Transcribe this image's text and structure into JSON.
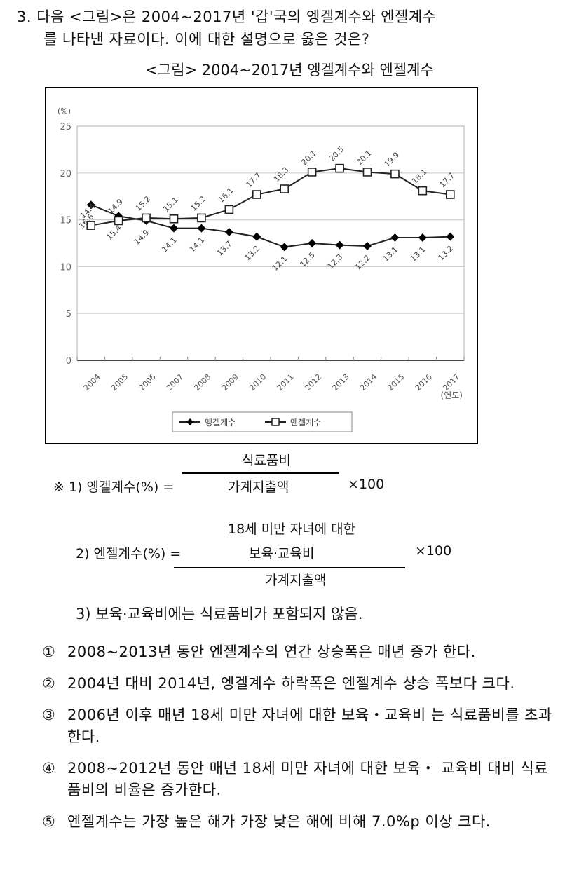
{
  "question": {
    "line1": "3. 다음 <그림>은 2004~2017년 '갑'국의 엥겔계수와 엔젤계수",
    "line2": "를 나타낸 자료이다. 이에 대한 설명으로 옳은 것은?"
  },
  "figure_title": "<그림> 2004~2017년 엥겔계수와 엔젤계수",
  "chart_data": {
    "type": "line",
    "title": "2004~2017년 엥겔계수와 엔젤계수",
    "xlabel": "(연도)",
    "ylabel": "(%)",
    "ylim": [
      0,
      25
    ],
    "yticks": [
      "0",
      "5",
      "10",
      "15",
      "20",
      "25"
    ],
    "grid": true,
    "legend_position": "bottom",
    "categories": [
      "2004",
      "2005",
      "2006",
      "2007",
      "2008",
      "2009",
      "2010",
      "2011",
      "2012",
      "2013",
      "2014",
      "2015",
      "2016",
      "2017"
    ],
    "series": [
      {
        "name": "엥겔계수",
        "marker": "filled-diamond",
        "values": [
          16.6,
          15.4,
          14.9,
          14.1,
          14.1,
          13.7,
          13.2,
          12.1,
          12.5,
          12.3,
          12.2,
          13.1,
          13.1,
          13.2
        ]
      },
      {
        "name": "엔젤계수",
        "marker": "open-square",
        "values": [
          14.4,
          14.9,
          15.2,
          15.1,
          15.2,
          16.1,
          17.7,
          18.3,
          20.1,
          20.5,
          20.1,
          19.9,
          18.1,
          17.7
        ]
      }
    ]
  },
  "notes": {
    "note1_prefix": "※ 1) 엥겔계수(%) =",
    "note1_numerator": "식료품비",
    "note1_denominator": "가계지출액",
    "note1_multiplier": "×100",
    "note2_prefix": "2) 엔젤계수(%) =",
    "note2_numerator_line1": "18세 미만 자녀에 대한",
    "note2_numerator_line2": "보육·교육비",
    "note2_denominator": "가계지출액",
    "note2_multiplier": "×100",
    "note3": "3) 보육·교육비에는 식료품비가 포함되지 않음."
  },
  "options": [
    {
      "num": "①",
      "text": "2008~2013년 동안 엔젤계수의 연간 상승폭은 매년 증가 한다."
    },
    {
      "num": "②",
      "text": "2004년 대비 2014년, 엥겔계수 하락폭은 엔젤계수 상승 폭보다 크다."
    },
    {
      "num": "③",
      "text": "2006년 이후 매년 18세 미만 자녀에 대한 보육・교육비 는 식료품비를 초과한다."
    },
    {
      "num": "④",
      "text": "2008~2012년 동안 매년 18세 미만 자녀에 대한 보육・ 교육비 대비 식료품비의 비율은 증가한다."
    },
    {
      "num": "⑤",
      "text": "엔젤계수는 가장 높은 해가 가장 낮은 해에 비해 7.0%p 이상 크다."
    }
  ]
}
